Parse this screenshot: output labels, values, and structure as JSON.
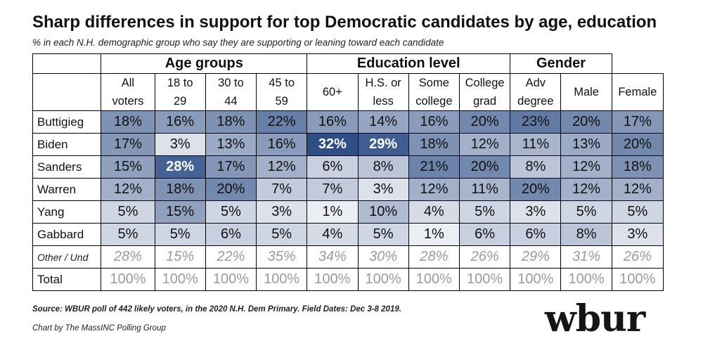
{
  "title": "Sharp differences in support for top Democratic candidates by age, education",
  "subtitle": "% in each N.H. demographic group who say they are supporting or leaning toward each candidate",
  "source": "Source: WBUR poll of 442 likely voters, in the 2020 N.H. Dem Primary. Field Dates: Dec 3-8 2019.",
  "credit": "Chart by The MassINC Polling Group",
  "logo": "wbur",
  "chart_data": {
    "type": "table",
    "groups": [
      {
        "label": "",
        "span": 1
      },
      {
        "label": "Age groups",
        "span": 4
      },
      {
        "label": "Education level",
        "span": 4
      },
      {
        "label": "Gender",
        "span": 2
      }
    ],
    "columns": [
      [
        "All",
        "voters"
      ],
      [
        "18 to",
        "29"
      ],
      [
        "30 to",
        "44"
      ],
      [
        "45 to",
        "59"
      ],
      [
        "60+"
      ],
      [
        "H.S. or",
        "less"
      ],
      [
        "Some",
        "college"
      ],
      [
        "College",
        "grad"
      ],
      [
        "Adv",
        "degree"
      ],
      [
        "Male"
      ],
      [
        "Female"
      ]
    ],
    "rows": [
      {
        "label": "Buttigieg",
        "values": [
          18,
          16,
          18,
          22,
          16,
          14,
          16,
          20,
          23,
          20,
          17
        ],
        "shaded": true
      },
      {
        "label": "Biden",
        "values": [
          17,
          3,
          13,
          16,
          32,
          29,
          18,
          12,
          11,
          13,
          20
        ],
        "shaded": true
      },
      {
        "label": "Sanders",
        "values": [
          15,
          28,
          17,
          12,
          6,
          8,
          21,
          20,
          8,
          12,
          18
        ],
        "shaded": true
      },
      {
        "label": "Warren",
        "values": [
          12,
          18,
          20,
          7,
          7,
          3,
          12,
          11,
          20,
          12,
          12
        ],
        "shaded": true
      },
      {
        "label": "Yang",
        "values": [
          5,
          15,
          5,
          3,
          1,
          10,
          4,
          5,
          3,
          5,
          5
        ],
        "shaded": true
      },
      {
        "label": "Gabbard",
        "values": [
          5,
          5,
          6,
          5,
          4,
          5,
          1,
          6,
          6,
          8,
          3
        ],
        "shaded": true
      },
      {
        "label": "Other / Und",
        "values": [
          28,
          15,
          22,
          35,
          34,
          30,
          28,
          26,
          29,
          31,
          26
        ],
        "shaded": false
      },
      {
        "label": "Total",
        "values": [
          100,
          100,
          100,
          100,
          100,
          100,
          100,
          100,
          100,
          100,
          100
        ],
        "shaded": false
      }
    ],
    "value_suffix": "%",
    "color_scale": {
      "low": "#f4f5f8",
      "high": "#2e4f86"
    }
  }
}
